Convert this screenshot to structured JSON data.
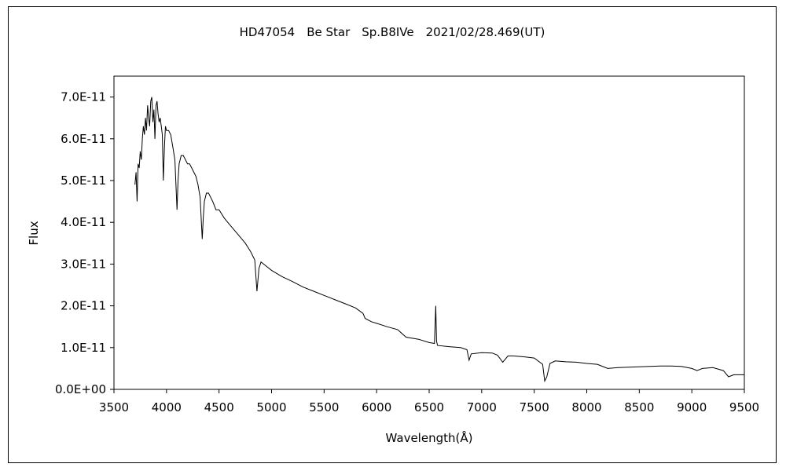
{
  "chart_data": {
    "type": "line",
    "title": "HD47054　Be Star　Sp.B8IVe　2021/02/28.469(UT)",
    "xlabel": "Wavelength(Å)",
    "ylabel": "Flux",
    "xlim": [
      3500,
      9500
    ],
    "ylim": [
      0,
      7.5e-11
    ],
    "x_ticks": [
      3500,
      4000,
      4500,
      5000,
      5500,
      6000,
      6500,
      7000,
      7500,
      8000,
      8500,
      9000,
      9500
    ],
    "x_tick_labels": [
      "3500",
      "4000",
      "4500",
      "5000",
      "5500",
      "6000",
      "6500",
      "7000",
      "7500",
      "8000",
      "8500",
      "9000",
      "9500"
    ],
    "y_ticks": [
      0,
      1e-11,
      2e-11,
      3e-11,
      4e-11,
      5e-11,
      6e-11,
      7e-11
    ],
    "y_tick_labels": [
      "0.0E+00",
      "1.0E-11",
      "2.0E-11",
      "3.0E-11",
      "4.0E-11",
      "5.0E-11",
      "6.0E-11",
      "7.0E-11"
    ],
    "grid": false,
    "legend": "none",
    "line_color": "#000000",
    "series": [
      {
        "points": [
          [
            3700,
            4.9e-11
          ],
          [
            3710,
            5.2e-11
          ],
          [
            3720,
            4.5e-11
          ],
          [
            3730,
            5.4e-11
          ],
          [
            3740,
            5.3e-11
          ],
          [
            3750,
            5.7e-11
          ],
          [
            3760,
            5.5e-11
          ],
          [
            3770,
            6e-11
          ],
          [
            3780,
            6.3e-11
          ],
          [
            3790,
            6.1e-11
          ],
          [
            3800,
            6.5e-11
          ],
          [
            3810,
            6.2e-11
          ],
          [
            3820,
            6.8e-11
          ],
          [
            3830,
            6.5e-11
          ],
          [
            3840,
            6.3e-11
          ],
          [
            3850,
            6.9e-11
          ],
          [
            3860,
            7e-11
          ],
          [
            3870,
            6.4e-11
          ],
          [
            3880,
            6.7e-11
          ],
          [
            3890,
            6e-11
          ],
          [
            3900,
            6.8e-11
          ],
          [
            3910,
            6.9e-11
          ],
          [
            3920,
            6.6e-11
          ],
          [
            3930,
            6.4e-11
          ],
          [
            3940,
            6.5e-11
          ],
          [
            3950,
            6.3e-11
          ],
          [
            3960,
            6.1e-11
          ],
          [
            3970,
            5e-11
          ],
          [
            3980,
            5.8e-11
          ],
          [
            3990,
            6.3e-11
          ],
          [
            4000,
            6.2e-11
          ],
          [
            4020,
            6.2e-11
          ],
          [
            4040,
            6.1e-11
          ],
          [
            4060,
            5.8e-11
          ],
          [
            4080,
            5.5e-11
          ],
          [
            4100,
            4.3e-11
          ],
          [
            4110,
            5e-11
          ],
          [
            4120,
            5.4e-11
          ],
          [
            4140,
            5.6e-11
          ],
          [
            4160,
            5.6e-11
          ],
          [
            4180,
            5.5e-11
          ],
          [
            4200,
            5.4e-11
          ],
          [
            4220,
            5.4e-11
          ],
          [
            4240,
            5.3e-11
          ],
          [
            4260,
            5.2e-11
          ],
          [
            4280,
            5.1e-11
          ],
          [
            4300,
            4.9e-11
          ],
          [
            4320,
            4.6e-11
          ],
          [
            4340,
            3.6e-11
          ],
          [
            4350,
            4.1e-11
          ],
          [
            4360,
            4.5e-11
          ],
          [
            4380,
            4.7e-11
          ],
          [
            4400,
            4.7e-11
          ],
          [
            4420,
            4.6e-11
          ],
          [
            4440,
            4.5e-11
          ],
          [
            4471,
            4.3e-11
          ],
          [
            4500,
            4.3e-11
          ],
          [
            4550,
            4.1e-11
          ],
          [
            4600,
            3.95e-11
          ],
          [
            4650,
            3.8e-11
          ],
          [
            4700,
            3.65e-11
          ],
          [
            4750,
            3.5e-11
          ],
          [
            4800,
            3.3e-11
          ],
          [
            4840,
            3.1e-11
          ],
          [
            4861,
            2.35e-11
          ],
          [
            4880,
            2.9e-11
          ],
          [
            4900,
            3.05e-11
          ],
          [
            4950,
            2.95e-11
          ],
          [
            5000,
            2.85e-11
          ],
          [
            5100,
            2.7e-11
          ],
          [
            5200,
            2.58e-11
          ],
          [
            5300,
            2.45e-11
          ],
          [
            5400,
            2.35e-11
          ],
          [
            5500,
            2.25e-11
          ],
          [
            5600,
            2.15e-11
          ],
          [
            5700,
            2.05e-11
          ],
          [
            5800,
            1.95e-11
          ],
          [
            5870,
            1.82e-11
          ],
          [
            5890,
            1.7e-11
          ],
          [
            5950,
            1.62e-11
          ],
          [
            6000,
            1.58e-11
          ],
          [
            6100,
            1.5e-11
          ],
          [
            6200,
            1.43e-11
          ],
          [
            6280,
            1.25e-11
          ],
          [
            6400,
            1.2e-11
          ],
          [
            6500,
            1.12e-11
          ],
          [
            6550,
            1.1e-11
          ],
          [
            6563,
            2e-11
          ],
          [
            6570,
            1.15e-11
          ],
          [
            6580,
            1.05e-11
          ],
          [
            6700,
            1.02e-11
          ],
          [
            6800,
            1e-11
          ],
          [
            6860,
            9.5e-12
          ],
          [
            6880,
            7e-12
          ],
          [
            6900,
            8.5e-12
          ],
          [
            7000,
            8.8e-12
          ],
          [
            7100,
            8.7e-12
          ],
          [
            7150,
            8.2e-12
          ],
          [
            7200,
            6.5e-12
          ],
          [
            7250,
            8e-12
          ],
          [
            7300,
            8e-12
          ],
          [
            7400,
            7.8e-12
          ],
          [
            7500,
            7.5e-12
          ],
          [
            7580,
            6e-12
          ],
          [
            7600,
            2e-12
          ],
          [
            7620,
            3e-12
          ],
          [
            7650,
            6.2e-12
          ],
          [
            7700,
            6.8e-12
          ],
          [
            7800,
            6.6e-12
          ],
          [
            7900,
            6.5e-12
          ],
          [
            8000,
            6.2e-12
          ],
          [
            8100,
            6e-12
          ],
          [
            8200,
            5e-12
          ],
          [
            8300,
            5.2e-12
          ],
          [
            8400,
            5.3e-12
          ],
          [
            8500,
            5.4e-12
          ],
          [
            8600,
            5.5e-12
          ],
          [
            8700,
            5.6e-12
          ],
          [
            8800,
            5.6e-12
          ],
          [
            8900,
            5.5e-12
          ],
          [
            9000,
            5e-12
          ],
          [
            9050,
            4.5e-12
          ],
          [
            9100,
            5e-12
          ],
          [
            9200,
            5.2e-12
          ],
          [
            9300,
            4.5e-12
          ],
          [
            9350,
            3e-12
          ],
          [
            9400,
            3.5e-12
          ],
          [
            9500,
            3.5e-12
          ]
        ]
      }
    ]
  }
}
